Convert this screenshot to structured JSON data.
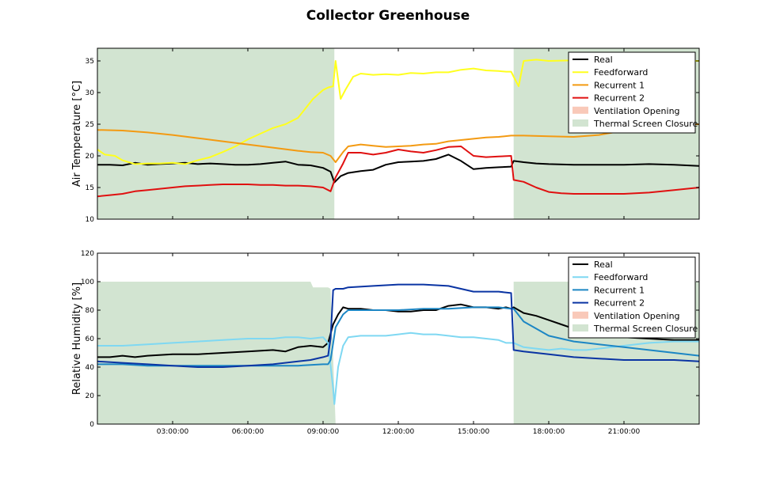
{
  "title": "Collector Greenhouse",
  "colors": {
    "real": "#000000",
    "feedforward_top": "#ffff1e",
    "feedforward_bottom": "#7fd8f2",
    "recurrent1_top": "#f39a12",
    "recurrent2_top": "#e01010",
    "recurrent1_bottom": "#1c86c4",
    "recurrent2_bottom": "#0a34a3",
    "ventilation": "#f9c9b9",
    "screen": "#d2e4d1"
  },
  "chart_data": [
    {
      "type": "line",
      "id": "temperature",
      "title": "Collector Greenhouse",
      "xlabel": "",
      "ylabel": "Air Temperature [°C]",
      "xlim": [
        0,
        24
      ],
      "ylim": [
        10,
        37
      ],
      "yticks": [
        10,
        15,
        20,
        25,
        30,
        35
      ],
      "xticks": [],
      "legend_position": "top-right",
      "legend": [
        "Real",
        "Feedforward",
        "Recurrent 1",
        "Recurrent 2",
        "Ventilation Opening",
        "Thermal Screen Closure"
      ],
      "thermal_screen_closure": [
        {
          "x": [
            0,
            9.45
          ],
          "top": 37
        },
        {
          "x": [
            16.6,
            24
          ],
          "top": 37
        }
      ],
      "series": [
        {
          "name": "Real",
          "color": "#000000",
          "x": [
            0,
            0.5,
            1,
            1.5,
            2,
            2.5,
            3,
            3.5,
            4,
            4.5,
            5,
            5.5,
            6,
            6.5,
            7,
            7.5,
            8,
            8.5,
            9,
            9.3,
            9.45,
            9.7,
            10,
            10.5,
            11,
            11.5,
            12,
            12.5,
            13,
            13.5,
            14,
            14.5,
            15,
            15.5,
            16,
            16.5,
            16.6,
            17,
            17.5,
            18,
            19,
            20,
            21,
            22,
            23,
            24
          ],
          "y": [
            18.6,
            18.6,
            18.5,
            18.9,
            18.6,
            18.7,
            18.8,
            18.9,
            18.7,
            18.8,
            18.7,
            18.6,
            18.6,
            18.7,
            18.9,
            19.1,
            18.6,
            18.5,
            18.1,
            17.5,
            15.8,
            16.8,
            17.3,
            17.6,
            17.8,
            18.6,
            19.0,
            19.1,
            19.2,
            19.5,
            20.2,
            19.2,
            17.9,
            18.1,
            18.2,
            18.3,
            19.2,
            19.0,
            18.8,
            18.7,
            18.6,
            18.6,
            18.6,
            18.7,
            18.6,
            18.4
          ]
        },
        {
          "name": "Feedforward",
          "color": "#ffff1e",
          "x": [
            0,
            0.3,
            0.7,
            1,
            1.5,
            2,
            2.5,
            3,
            3.5,
            4,
            4.5,
            5,
            5.5,
            6,
            6.5,
            7,
            7.5,
            8,
            8.3,
            8.6,
            9,
            9.2,
            9.4,
            9.5,
            9.7,
            9.9,
            10.2,
            10.5,
            11,
            11.5,
            12,
            12.5,
            13,
            13.5,
            14,
            14.5,
            15,
            15.5,
            16,
            16.3,
            16.5,
            16.6,
            16.8,
            17.0,
            17.5,
            18,
            19,
            20,
            21,
            22,
            23,
            24
          ],
          "y": [
            21.0,
            20.2,
            20.0,
            19.3,
            18.7,
            18.8,
            18.8,
            18.9,
            18.7,
            19.3,
            19.8,
            20.6,
            21.5,
            22.6,
            23.5,
            24.4,
            25.0,
            26.0,
            27.5,
            29.0,
            30.4,
            30.8,
            31.0,
            35.0,
            29.0,
            30.5,
            32.5,
            33.0,
            32.8,
            32.9,
            32.8,
            33.1,
            33.0,
            33.2,
            33.2,
            33.6,
            33.8,
            33.5,
            33.4,
            33.3,
            33.3,
            32.5,
            31.0,
            35.0,
            35.2,
            35.0,
            35.1,
            35.0,
            35.1,
            35.0,
            35.0,
            35.0
          ]
        },
        {
          "name": "Recurrent 1",
          "color": "#f39a12",
          "x": [
            0,
            1,
            2,
            3,
            4,
            5,
            6,
            7,
            8,
            8.5,
            9,
            9.3,
            9.5,
            9.8,
            10,
            10.5,
            11,
            11.5,
            12,
            12.5,
            13,
            13.5,
            14,
            14.5,
            15,
            15.5,
            16,
            16.5,
            17,
            18,
            19,
            20,
            21,
            22,
            23,
            24
          ],
          "y": [
            24.1,
            24.0,
            23.7,
            23.3,
            22.8,
            22.3,
            21.8,
            21.3,
            20.8,
            20.6,
            20.5,
            20.0,
            19.0,
            20.6,
            21.5,
            21.8,
            21.6,
            21.4,
            21.5,
            21.6,
            21.8,
            21.9,
            22.3,
            22.5,
            22.7,
            22.9,
            23.0,
            23.2,
            23.2,
            23.1,
            23.0,
            23.3,
            24.0,
            24.7,
            24.9,
            25.0
          ]
        },
        {
          "name": "Recurrent 2",
          "color": "#e01010",
          "x": [
            0,
            0.5,
            1,
            1.5,
            2,
            2.5,
            3,
            3.5,
            4,
            4.5,
            5,
            5.5,
            6,
            6.5,
            7,
            7.5,
            8,
            8.5,
            9,
            9.3,
            9.5,
            9.8,
            10,
            10.5,
            11,
            11.5,
            12,
            12.5,
            13,
            13.5,
            14,
            14.5,
            15,
            15.5,
            16,
            16.5,
            16.6,
            17,
            17.5,
            18,
            18.5,
            19,
            20,
            21,
            22,
            23,
            24
          ],
          "y": [
            13.6,
            13.8,
            14.0,
            14.4,
            14.6,
            14.8,
            15.0,
            15.2,
            15.3,
            15.4,
            15.5,
            15.5,
            15.5,
            15.4,
            15.4,
            15.3,
            15.3,
            15.2,
            15.0,
            14.4,
            16.6,
            18.8,
            20.5,
            20.5,
            20.2,
            20.5,
            21.0,
            20.7,
            20.5,
            20.9,
            21.4,
            21.5,
            20.0,
            19.8,
            19.9,
            20.0,
            16.2,
            15.9,
            15.0,
            14.3,
            14.1,
            14.0,
            14.0,
            14.0,
            14.2,
            14.6,
            15.0
          ]
        }
      ]
    },
    {
      "type": "line",
      "id": "humidity",
      "title": "",
      "xlabel": "",
      "ylabel": "Relative Humidity [%]",
      "xlim": [
        0,
        24
      ],
      "ylim": [
        0,
        120
      ],
      "yticks": [
        0,
        20,
        40,
        60,
        80,
        100,
        120
      ],
      "xticks": [
        "03:00:00",
        "06:00:00",
        "09:00:00",
        "12:00:00",
        "15:00:00",
        "18:00:00",
        "21:00:00"
      ],
      "xtick_values": [
        3,
        6,
        9,
        12,
        15,
        18,
        21
      ],
      "legend_position": "top-right",
      "legend": [
        "Real",
        "Feedforward",
        "Recurrent 1",
        "Recurrent 2",
        "Ventilation Opening",
        "Thermal Screen Closure"
      ],
      "thermal_screen_closure_profile": {
        "x": [
          0,
          8.5,
          8.6,
          9.2,
          9.3,
          9.5,
          16.6,
          16.6,
          24
        ],
        "top": [
          100,
          100,
          96,
          96,
          95,
          0,
          0,
          100,
          100
        ]
      },
      "series": [
        {
          "name": "Real",
          "color": "#000000",
          "x": [
            0,
            0.5,
            1,
            1.5,
            2,
            3,
            4,
            5,
            6,
            7,
            7.5,
            8,
            8.5,
            9,
            9.2,
            9.4,
            9.6,
            9.8,
            10,
            10.5,
            11,
            11.5,
            12,
            12.5,
            13,
            13.5,
            14,
            14.5,
            15,
            15.5,
            16,
            16.3,
            16.5,
            16.6,
            17,
            17.5,
            18,
            18.5,
            19,
            19.5,
            20,
            21,
            22,
            23,
            24
          ],
          "y": [
            47,
            47,
            48,
            47,
            48,
            49,
            49,
            50,
            51,
            52,
            51,
            54,
            55,
            54,
            57,
            70,
            77,
            82,
            81,
            81,
            80,
            80,
            79,
            79,
            80,
            80,
            83,
            84,
            82,
            82,
            81,
            82,
            81,
            82,
            78,
            76,
            73,
            70,
            67,
            64,
            63,
            61,
            60,
            59,
            59
          ]
        },
        {
          "name": "Feedforward",
          "color": "#7fd8f2",
          "x": [
            0,
            1,
            2,
            3,
            4,
            5,
            6,
            7,
            7.5,
            8,
            8.5,
            9,
            9.2,
            9.4,
            9.45,
            9.6,
            9.8,
            10,
            10.5,
            11,
            11.5,
            12,
            12.5,
            13,
            13.5,
            14,
            14.5,
            15,
            15.5,
            16,
            16.3,
            16.6,
            17,
            17.5,
            18,
            18.5,
            19,
            19.5,
            20,
            21,
            22,
            23,
            24
          ],
          "y": [
            55,
            55,
            56,
            57,
            58,
            59,
            60,
            60,
            61,
            61,
            60,
            61,
            57,
            25,
            14,
            40,
            55,
            61,
            62,
            62,
            62,
            63,
            64,
            63,
            63,
            62,
            61,
            61,
            60,
            59,
            57,
            57,
            54,
            53,
            52,
            53,
            52,
            52,
            53,
            55,
            57,
            58,
            58
          ]
        },
        {
          "name": "Recurrent 1",
          "color": "#1c86c4",
          "x": [
            0,
            1,
            2,
            3,
            4,
            5,
            6,
            7,
            8,
            9,
            9.2,
            9.3,
            9.5,
            9.8,
            10,
            11,
            12,
            13,
            14,
            15,
            16,
            16.5,
            16.6,
            17,
            17.5,
            18,
            18.5,
            19,
            19.5,
            20,
            21,
            22,
            23,
            24
          ],
          "y": [
            42,
            42,
            41,
            41,
            41,
            41,
            41,
            41,
            41,
            42,
            42,
            45,
            68,
            77,
            80,
            80,
            80,
            81,
            81,
            82,
            82,
            81,
            81,
            72,
            67,
            62,
            60,
            58,
            57,
            56,
            54,
            52,
            50,
            48
          ]
        },
        {
          "name": "Recurrent 2",
          "color": "#0a34a3",
          "x": [
            0,
            1,
            2,
            3,
            4,
            5,
            6,
            7,
            8,
            8.5,
            9,
            9.2,
            9.3,
            9.4,
            9.5,
            9.8,
            10,
            11,
            12,
            13,
            14,
            15,
            16,
            16.5,
            16.6,
            17,
            18,
            19,
            20,
            21,
            22,
            23,
            24
          ],
          "y": [
            44,
            43,
            42,
            41,
            40,
            40,
            41,
            42,
            44,
            45,
            47,
            48,
            60,
            94,
            95,
            95,
            96,
            97,
            98,
            98,
            97,
            93,
            93,
            92,
            52,
            51,
            49,
            47,
            46,
            45,
            45,
            45,
            44
          ]
        }
      ]
    }
  ]
}
